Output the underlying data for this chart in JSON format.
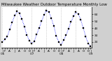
{
  "title": "Milwaukee Weather Outdoor Temperature Monthly Low",
  "background_color": "#d0d0d0",
  "plot_bg_color": "#ffffff",
  "line_color": "#0000ff",
  "marker_color": "#000000",
  "grid_color": "#b0b0b0",
  "values": [
    24,
    28,
    32,
    42,
    52,
    62,
    68,
    65,
    57,
    46,
    34,
    26,
    22,
    25,
    35,
    44,
    54,
    63,
    69,
    67,
    58,
    47,
    33,
    24,
    20,
    27,
    34,
    43,
    53,
    61,
    67,
    64,
    56,
    44,
    32,
    22,
    18
  ],
  "ylim": [
    16,
    74
  ],
  "ytick_vals": [
    24,
    34,
    44,
    54,
    64
  ],
  "ytick_labels": [
    "24",
    "34",
    "44",
    "54",
    "64"
  ],
  "grid_positions": [
    0,
    6,
    12,
    18,
    24,
    30,
    36
  ],
  "title_fontsize": 4.0,
  "tick_fontsize": 3.0,
  "linewidth": 0.6,
  "markersize": 1.5,
  "n_points": 37
}
